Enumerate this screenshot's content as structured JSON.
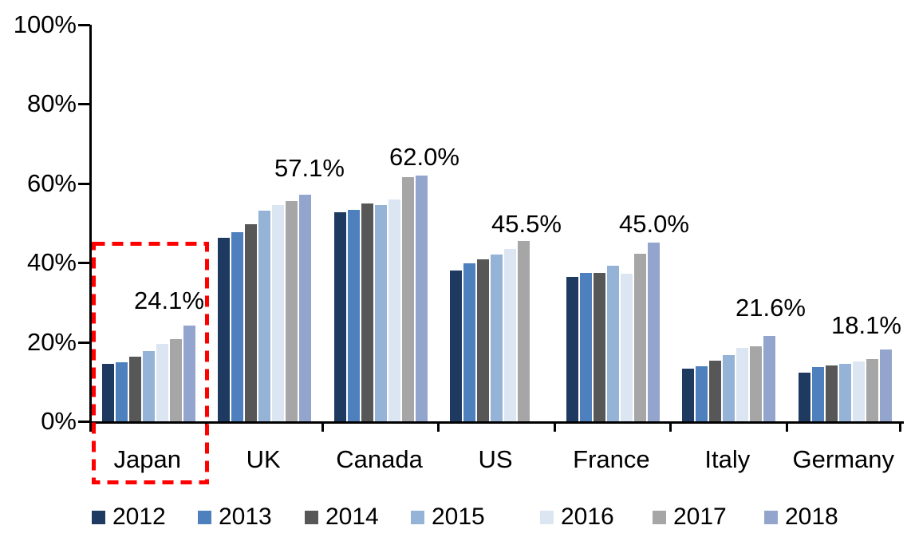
{
  "chart_data": {
    "type": "bar",
    "title": "",
    "xlabel": "",
    "ylabel": "",
    "categories": [
      "Japan",
      "UK",
      "Canada",
      "US",
      "France",
      "Italy",
      "Germany"
    ],
    "series": [
      {
        "name": "2012",
        "color": "#1F3A60",
        "values": [
          14.5,
          46.2,
          52.8,
          38.0,
          36.4,
          13.2,
          12.2
        ]
      },
      {
        "name": "2013",
        "color": "#4E80BD",
        "values": [
          14.8,
          47.6,
          53.3,
          39.8,
          37.5,
          13.9,
          13.6
        ]
      },
      {
        "name": "2014",
        "color": "#575757",
        "values": [
          16.3,
          49.6,
          54.9,
          40.9,
          37.5,
          15.2,
          14.1
        ]
      },
      {
        "name": "2015",
        "color": "#95B3D7",
        "values": [
          17.8,
          53.1,
          54.6,
          42.0,
          39.2,
          16.6,
          14.5
        ]
      },
      {
        "name": "2016",
        "color": "#DCE6F2",
        "values": [
          19.6,
          54.6,
          55.9,
          43.4,
          37.3,
          18.6,
          15.1
        ]
      },
      {
        "name": "2017",
        "color": "#A6A6A6",
        "values": [
          20.7,
          55.6,
          61.5,
          45.5,
          42.2,
          19.0,
          15.7
        ]
      },
      {
        "name": "2018",
        "color": "#94A5CD",
        "values": [
          24.1,
          57.1,
          62.0,
          null,
          45.0,
          21.6,
          18.1
        ]
      }
    ],
    "annotations": [
      {
        "category": "Japan",
        "text": "24.1%"
      },
      {
        "category": "UK",
        "text": "57.1%"
      },
      {
        "category": "Canada",
        "text": "62.0%"
      },
      {
        "category": "US",
        "text": "45.5%"
      },
      {
        "category": "France",
        "text": "45.0%"
      },
      {
        "category": "Italy",
        "text": "21.6%"
      },
      {
        "category": "Germany",
        "text": "18.1%"
      }
    ],
    "y_axis": {
      "tick_labels": [
        "0%",
        "20%",
        "40%",
        "60%",
        "80%",
        "100%"
      ],
      "min": 0,
      "max": 100,
      "step": 20
    },
    "grid": false,
    "legend": {
      "position": "bottom",
      "entries": [
        "2012",
        "2013",
        "2014",
        "2015",
        "2016",
        "2017",
        "2018"
      ]
    },
    "highlight": {
      "category": "Japan",
      "style": "dashed-box",
      "color": "#FF0000"
    }
  }
}
